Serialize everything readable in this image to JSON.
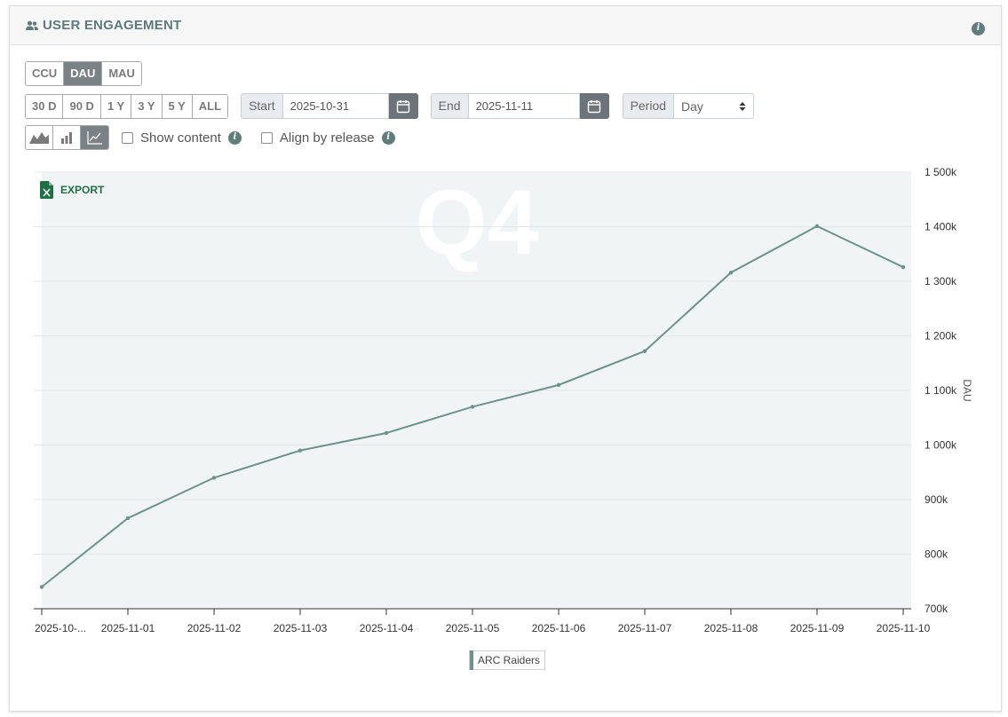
{
  "header": {
    "title": "USER ENGAGEMENT",
    "icon": "users-icon"
  },
  "metric_tabs": [
    {
      "label": "CCU",
      "active": false
    },
    {
      "label": "DAU",
      "active": true
    },
    {
      "label": "MAU",
      "active": false
    }
  ],
  "range_tabs": [
    {
      "label": "30 D"
    },
    {
      "label": "90 D"
    },
    {
      "label": "1 Y"
    },
    {
      "label": "3 Y"
    },
    {
      "label": "5 Y"
    },
    {
      "label": "ALL"
    }
  ],
  "start": {
    "label": "Start",
    "value": "2025-10-31"
  },
  "end": {
    "label": "End",
    "value": "2025-11-11"
  },
  "period": {
    "label": "Period",
    "value": "Day"
  },
  "options": {
    "show_content": "Show content",
    "align_by_release": "Align by release"
  },
  "export_label": "EXPORT",
  "watermark": "Q4",
  "colors": {
    "line": "#6c9389",
    "plot_bg": "#f1f4f4",
    "accent": "#617d7b"
  },
  "chart_data": {
    "type": "line",
    "x": [
      "2025-10-...",
      "2025-11-01",
      "2025-11-02",
      "2025-11-03",
      "2025-11-04",
      "2025-11-05",
      "2025-11-06",
      "2025-11-07",
      "2025-11-08",
      "2025-11-09",
      "2025-11-10"
    ],
    "series": [
      {
        "name": "ARC Raiders",
        "values": [
          740,
          866,
          940,
          990,
          1022,
          1070,
          1110,
          1172,
          1316,
          1401,
          1326
        ]
      }
    ],
    "ylim": [
      700,
      1500
    ],
    "yticks": [
      700,
      800,
      900,
      1000,
      1100,
      1200,
      1300,
      1400,
      1500
    ],
    "ytick_labels": [
      "700k",
      "800k",
      "900k",
      "1 000k",
      "1 100k",
      "1 200k",
      "1 300k",
      "1 400k",
      "1 500k"
    ],
    "ylabel": "DAU",
    "yaxis_position": "right",
    "grid": true,
    "legend": "bottom-center"
  }
}
